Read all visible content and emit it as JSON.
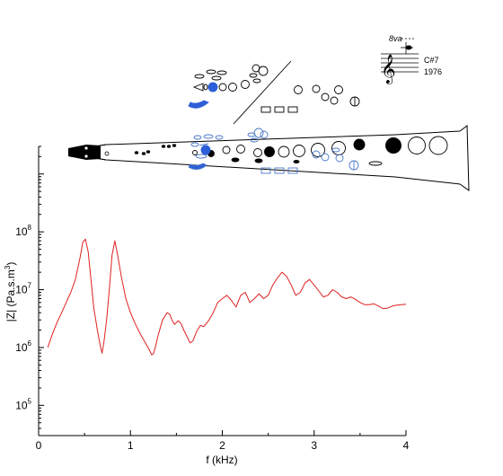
{
  "chart_data": {
    "type": "line",
    "xlabel": "f (kHz)",
    "ylabel": "|Z| (Pa.s.m",
    "ylabel_sup": "3",
    "ylabel_close": ")",
    "xlim": [
      0,
      4
    ],
    "ylim": [
      30000,
      3000000000
    ],
    "yscale": "log",
    "xticks": [
      {
        "value": 0,
        "label": "0"
      },
      {
        "value": 1,
        "label": "1"
      },
      {
        "value": 2,
        "label": "2"
      },
      {
        "value": 3,
        "label": "3"
      },
      {
        "value": 4,
        "label": "4"
      }
    ],
    "yticks": [
      {
        "value": 100000,
        "base": "10",
        "exp": "5"
      },
      {
        "value": 1000000,
        "base": "10",
        "exp": "6"
      },
      {
        "value": 10000000,
        "base": "10",
        "exp": "7"
      },
      {
        "value": 100000000,
        "base": "10",
        "exp": "8"
      }
    ],
    "grid": false,
    "series": [
      {
        "color": "#e02020",
        "x": [
          0.1,
          0.15,
          0.2,
          0.25,
          0.3,
          0.35,
          0.4,
          0.45,
          0.48,
          0.51,
          0.54,
          0.57,
          0.6,
          0.64,
          0.67,
          0.69,
          0.71,
          0.74,
          0.77,
          0.8,
          0.83,
          0.86,
          0.9,
          0.95,
          1.0,
          1.05,
          1.1,
          1.15,
          1.2,
          1.23,
          1.25,
          1.27,
          1.3,
          1.35,
          1.4,
          1.43,
          1.45,
          1.48,
          1.52,
          1.55,
          1.58,
          1.62,
          1.65,
          1.68,
          1.72,
          1.76,
          1.8,
          1.85,
          1.9,
          1.95,
          2.0,
          2.05,
          2.1,
          2.15,
          2.2,
          2.25,
          2.3,
          2.35,
          2.4,
          2.45,
          2.5,
          2.55,
          2.6,
          2.65,
          2.7,
          2.75,
          2.8,
          2.85,
          2.9,
          2.95,
          3.0,
          3.05,
          3.1,
          3.15,
          3.2,
          3.25,
          3.3,
          3.35,
          3.4,
          3.45,
          3.5,
          3.55,
          3.6,
          3.65,
          3.7,
          3.75,
          3.8,
          3.85,
          3.9,
          3.95,
          4.0
        ],
        "y": [
          1000000,
          1700000,
          2700000,
          4000000,
          6000000,
          9000000,
          15000000,
          35000000,
          65000000,
          75000000,
          45000000,
          15000000,
          5000000,
          2000000,
          1100000,
          800000,
          1200000,
          3000000,
          10000000,
          40000000,
          70000000,
          40000000,
          17000000,
          7000000,
          4000000,
          2600000,
          1800000,
          1300000,
          950000,
          750000,
          780000,
          1000000,
          1600000,
          3000000,
          4000000,
          3700000,
          3000000,
          2500000,
          2900000,
          2600000,
          2000000,
          1500000,
          1200000,
          1300000,
          1900000,
          2400000,
          2300000,
          2900000,
          4000000,
          6000000,
          7000000,
          8000000,
          6500000,
          5000000,
          8000000,
          9000000,
          6000000,
          7000000,
          8500000,
          7000000,
          8000000,
          12000000,
          16000000,
          20000000,
          17000000,
          12000000,
          8000000,
          9000000,
          13000000,
          15000000,
          12000000,
          9500000,
          7500000,
          8000000,
          10000000,
          9000000,
          7500000,
          7000000,
          7500000,
          6800000,
          6000000,
          5500000,
          5500000,
          5700000,
          5200000,
          4700000,
          4800000,
          5200000,
          5400000,
          5500000,
          5600000
        ]
      }
    ]
  },
  "inset": {
    "note_name": "C#7",
    "year": "1976",
    "octave_mark": "8va"
  }
}
